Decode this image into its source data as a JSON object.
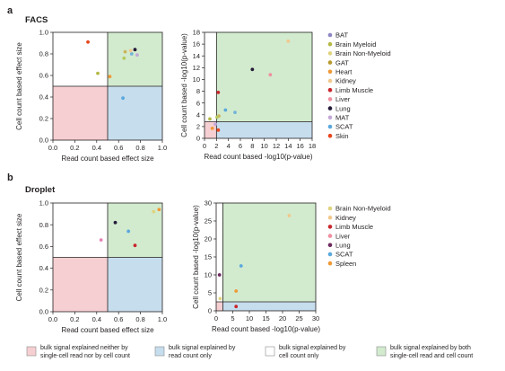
{
  "panel_a": {
    "letter": "a",
    "title": "FACS"
  },
  "panel_b": {
    "letter": "b",
    "title": "Droplet"
  },
  "region_colors": {
    "neither": "#f6cfd2",
    "read_only": "#c6dded",
    "cell_only": "#ffffff",
    "both": "#d2ebce"
  },
  "bottom_legend": [
    {
      "key": "neither",
      "lines": [
        "bulk signal explained neither by",
        "single-cell read nor by cell count"
      ]
    },
    {
      "key": "read_only",
      "lines": [
        "bulk signal explained by",
        "read count only"
      ]
    },
    {
      "key": "cell_only",
      "lines": [
        "bulk signal explained by",
        "cell count only"
      ]
    },
    {
      "key": "both",
      "lines": [
        "bulk signal explained by both",
        "single-cell read and cell count"
      ]
    }
  ],
  "chart_data": [
    {
      "id": "a-left",
      "type": "scatter",
      "xlabel": "Read count based effect size",
      "ylabel": "Cell count based effect size",
      "xlim": [
        0,
        1
      ],
      "ylim": [
        0,
        1
      ],
      "xticks": [
        "0.0",
        "0.2",
        "0.4",
        "0.6",
        "0.8",
        "1.0"
      ],
      "yticks": [
        "0.0",
        "0.2",
        "0.4",
        "0.6",
        "0.8",
        "1.0"
      ],
      "threshold": [
        0.5,
        0.5
      ],
      "points": [
        {
          "x": 0.32,
          "y": 0.91,
          "color": "#e8451e"
        },
        {
          "x": 0.41,
          "y": 0.62,
          "color": "#b5b845"
        },
        {
          "x": 0.52,
          "y": 0.59,
          "color": "#ef9a36"
        },
        {
          "x": 0.64,
          "y": 0.39,
          "color": "#5ba8dc"
        },
        {
          "x": 0.65,
          "y": 0.76,
          "color": "#b7c95f"
        },
        {
          "x": 0.66,
          "y": 0.82,
          "color": "#ccb45a"
        },
        {
          "x": 0.72,
          "y": 0.8,
          "color": "#73b4d8"
        },
        {
          "x": 0.75,
          "y": 0.84,
          "color": "#241c3a"
        },
        {
          "x": 0.77,
          "y": 0.79,
          "color": "#c3a8d8"
        },
        {
          "x": 0.71,
          "y": 0.83,
          "color": "#f2c88d"
        }
      ]
    },
    {
      "id": "a-right",
      "type": "scatter",
      "xlabel": "Read count based -log10(p-value)",
      "ylabel": "Cell count based -log10(p-value)",
      "xlim": [
        0,
        18
      ],
      "ylim": [
        0,
        18
      ],
      "xticks": [
        "0",
        "2",
        "4",
        "6",
        "8",
        "10",
        "12",
        "14",
        "16",
        "18"
      ],
      "yticks": [
        "0",
        "2",
        "4",
        "6",
        "8",
        "10",
        "12",
        "14",
        "16",
        "18"
      ],
      "threshold": [
        2,
        2.8
      ],
      "points": [
        {
          "x": 14.0,
          "y": 16.5,
          "color": "#f2c88d"
        },
        {
          "x": 8.0,
          "y": 11.7,
          "color": "#241c3a"
        },
        {
          "x": 11.0,
          "y": 10.8,
          "color": "#ef8fa0"
        },
        {
          "x": 2.3,
          "y": 7.8,
          "color": "#c9262d"
        },
        {
          "x": 3.5,
          "y": 4.8,
          "color": "#5ba8dc"
        },
        {
          "x": 5.1,
          "y": 4.4,
          "color": "#73b4d8"
        },
        {
          "x": 2.4,
          "y": 3.8,
          "color": "#ccb45a"
        },
        {
          "x": 2.1,
          "y": 3.6,
          "color": "#b7c95f"
        },
        {
          "x": 0.9,
          "y": 3.3,
          "color": "#b5b845"
        },
        {
          "x": 1.3,
          "y": 1.7,
          "color": "#ef9a36"
        },
        {
          "x": 2.3,
          "y": 1.4,
          "color": "#e8451e"
        },
        {
          "x": 1.8,
          "y": 2.4,
          "color": "#c3a8d8"
        }
      ]
    },
    {
      "id": "b-left",
      "type": "scatter",
      "xlabel": "Read count based effect size",
      "ylabel": "Cell count based effect size",
      "xlim": [
        0,
        1
      ],
      "ylim": [
        0,
        1
      ],
      "xticks": [
        "0.0",
        "0.2",
        "0.4",
        "0.6",
        "0.8",
        "1.0"
      ],
      "yticks": [
        "0.0",
        "0.2",
        "0.4",
        "0.6",
        "0.8",
        "1.0"
      ],
      "threshold": [
        0.5,
        0.5
      ],
      "points": [
        {
          "x": 0.44,
          "y": 0.66,
          "color": "#e486b8"
        },
        {
          "x": 0.57,
          "y": 0.82,
          "color": "#241c3a"
        },
        {
          "x": 0.69,
          "y": 0.74,
          "color": "#5ba8dc"
        },
        {
          "x": 0.75,
          "y": 0.61,
          "color": "#c9262d"
        },
        {
          "x": 0.92,
          "y": 0.92,
          "color": "#e0d480"
        },
        {
          "x": 0.97,
          "y": 0.94,
          "color": "#ef9a36"
        }
      ]
    },
    {
      "id": "b-right",
      "type": "scatter",
      "xlabel": "Read count based -log10(p-value)",
      "ylabel": "Cell count based -log10(p-value)",
      "xlim": [
        0,
        30
      ],
      "ylim": [
        0,
        30
      ],
      "xticks": [
        "0",
        "5",
        "10",
        "15",
        "20",
        "25",
        "30"
      ],
      "yticks": [
        "0",
        "5",
        "10",
        "15",
        "20",
        "25",
        "30"
      ],
      "threshold": [
        2,
        2.5
      ],
      "points": [
        {
          "x": 22.0,
          "y": 26.5,
          "color": "#f2c88d"
        },
        {
          "x": 7.5,
          "y": 12.5,
          "color": "#5ba8dc"
        },
        {
          "x": 1.0,
          "y": 10.0,
          "color": "#6e2a5e"
        },
        {
          "x": 6.0,
          "y": 5.5,
          "color": "#ef9a36"
        },
        {
          "x": 1.2,
          "y": 3.4,
          "color": "#e0d480"
        },
        {
          "x": 6.0,
          "y": 1.2,
          "color": "#c9262d"
        }
      ]
    }
  ],
  "legend_a": [
    {
      "label": "BAT",
      "color": "#8c86c4"
    },
    {
      "label": "Brain Myeloid",
      "color": "#b5b845"
    },
    {
      "label": "Brain Non-Myeloid",
      "color": "#e0d480"
    },
    {
      "label": "GAT",
      "color": "#b89a2e"
    },
    {
      "label": "Heart",
      "color": "#ef9a36"
    },
    {
      "label": "Kidney",
      "color": "#f2c88d"
    },
    {
      "label": "Limb Muscle",
      "color": "#c9262d"
    },
    {
      "label": "Liver",
      "color": "#ef8fa0"
    },
    {
      "label": "Lung",
      "color": "#241c3a"
    },
    {
      "label": "MAT",
      "color": "#c3a8d8"
    },
    {
      "label": "SCAT",
      "color": "#5ba8dc"
    },
    {
      "label": "Skin",
      "color": "#e8451e"
    }
  ],
  "legend_b": [
    {
      "label": "Brain Non-Myeloid",
      "color": "#e0d480"
    },
    {
      "label": "Kidney",
      "color": "#f2c88d"
    },
    {
      "label": "Limb Muscle",
      "color": "#c9262d"
    },
    {
      "label": "Liver",
      "color": "#ef8fa0"
    },
    {
      "label": "Lung",
      "color": "#6e2a5e"
    },
    {
      "label": "SCAT",
      "color": "#5ba8dc"
    },
    {
      "label": "Spleen",
      "color": "#ef9a36"
    }
  ]
}
